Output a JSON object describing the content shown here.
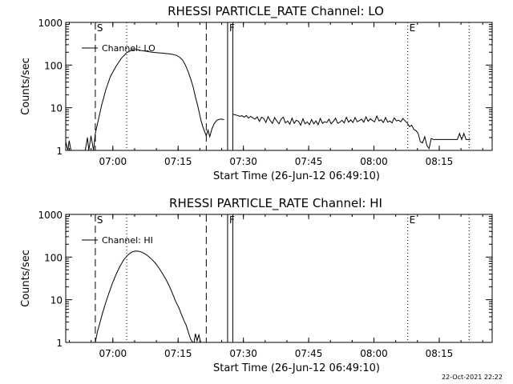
{
  "footer": {
    "timestamp": "22-Oct-2021 22:22"
  },
  "chart_data": [
    {
      "type": "line",
      "title": "RHESSI PARTICLE_RATE Channel: LO",
      "xlabel": "Start Time (26-Jun-12 06:49:10)",
      "ylabel": "Counts/sec",
      "yscale": "log",
      "ylim": [
        1,
        1000
      ],
      "xlim_min_after_start": [
        0,
        98
      ],
      "x_tick_minutes": [
        10.833,
        25.833,
        40.833,
        55.833,
        70.833,
        85.833
      ],
      "x_tick_labels": [
        "07:00",
        "07:15",
        "07:30",
        "07:45",
        "08:00",
        "08:15"
      ],
      "y_tick_values": [
        1,
        10,
        100,
        1000
      ],
      "y_tick_labels": [
        "1",
        "10",
        "100",
        "1000"
      ],
      "legend": "Channel: LO",
      "legend_position": "top-left",
      "event_markers": [
        {
          "label": "S",
          "minute": 6.8,
          "style": "dashed"
        },
        {
          "label": "",
          "minute": 14.0,
          "style": "dotted"
        },
        {
          "label": "",
          "minute": 32.3,
          "style": "dashed"
        },
        {
          "label": "F",
          "minute": 37.2,
          "style": "solid"
        },
        {
          "label": "",
          "minute": 38.4,
          "style": "solid"
        },
        {
          "label": "E",
          "minute": 78.6,
          "style": "dotted"
        },
        {
          "label": "",
          "minute": 92.7,
          "style": "dotted"
        }
      ],
      "series": [
        {
          "name": "Channel: LO",
          "segments": [
            {
              "x": [
                0,
                0.5,
                0.8,
                1.2,
                2.0,
                3.0,
                4.5,
                5.0,
                5.3,
                5.8,
                6.4,
                6.8,
                7.5,
                8.3,
                9.2,
                10.3,
                11.6,
                12.8,
                14.0,
                15.2,
                16.3,
                17.3,
                18.6,
                19.8,
                21.0,
                22.3,
                23.5,
                24.6,
                25.5,
                26.2,
                26.9,
                27.5,
                28.1,
                28.7,
                29.3,
                29.8,
                30.3,
                30.7,
                31.1,
                31.5,
                31.9,
                32.3,
                32.7,
                33.1,
                33.6,
                34.1,
                34.7,
                35.5,
                36.4
              ],
              "y": [
                1.6,
                1.0,
                1.7,
                1.0,
                1.0,
                1.0,
                1.0,
                2.0,
                1.0,
                2.2,
                1.0,
                2.5,
                5.2,
                12,
                26,
                55,
                95,
                145,
                195,
                225,
                232,
                220,
                210,
                200,
                195,
                190,
                185,
                178,
                168,
                152,
                130,
                100,
                72,
                48,
                30,
                18,
                11.5,
                7.5,
                5.0,
                3.6,
                2.8,
                2.2,
                3.0,
                2.1,
                3.2,
                4.2,
                5.1,
                5.4,
                5.3
              ]
            },
            {
              "x": [
                38.4,
                39.0,
                39.5,
                40.0,
                40.5,
                41.0,
                41.5,
                42.0,
                42.5,
                43.0,
                43.5,
                44.0,
                44.5,
                45.0,
                45.5,
                46.0,
                46.5,
                47.0,
                47.5,
                48.0,
                48.5,
                49.0,
                49.5,
                50.0,
                50.5,
                51.0,
                51.5,
                52.0,
                52.5,
                53.0,
                53.5,
                54.0,
                54.5,
                55.0,
                55.5,
                56.0,
                56.5,
                57.0,
                57.5,
                58.0,
                58.5,
                59.0,
                59.5,
                60.0,
                60.5,
                61.0,
                61.5,
                62.0,
                62.5,
                63.0,
                63.5,
                64.0,
                64.5,
                65.0,
                65.5,
                66.0,
                66.5,
                67.0,
                67.5,
                68.0,
                68.5,
                69.0,
                69.5,
                70.0,
                70.5,
                71.0,
                71.5,
                72.0,
                72.5,
                73.0,
                73.5,
                74.0,
                74.5,
                75.0,
                75.5,
                76.0,
                76.5,
                77.0,
                77.5,
                78.0,
                78.5,
                79.0,
                79.5,
                80.0,
                80.5,
                81.0,
                81.5,
                82.0,
                82.5,
                83.0,
                83.5,
                84.0,
                84.5,
                85.0,
                85.5,
                86.0,
                86.5,
                87.0,
                87.5,
                88.0,
                88.5,
                89.0,
                89.5,
                90.0,
                90.5,
                91.0,
                91.5,
                92.0,
                92.5,
                93.0
              ],
              "y": [
                7.1,
                6.8,
                6.6,
                6.3,
                6.5,
                6.0,
                6.6,
                5.7,
                6.3,
                5.8,
                5.4,
                6.1,
                4.8,
                6.0,
                5.6,
                4.5,
                6.2,
                5.0,
                4.3,
                5.9,
                4.9,
                4.2,
                5.4,
                6.0,
                4.4,
                4.9,
                4.1,
                5.7,
                4.3,
                5.1,
                4.8,
                3.9,
                5.5,
                4.2,
                4.7,
                4.0,
                5.3,
                4.2,
                4.9,
                4.0,
                5.6,
                4.3,
                4.7,
                4.5,
                5.4,
                4.2,
                4.8,
                5.7,
                4.3,
                4.6,
                5.1,
                4.4,
                6.0,
                4.6,
                5.2,
                4.5,
                5.9,
                4.7,
                5.0,
                5.4,
                4.6,
                6.1,
                4.8,
                5.5,
                5.0,
                4.7,
                6.4,
                4.9,
                5.2,
                4.5,
                5.9,
                4.6,
                4.9,
                4.4,
                5.8,
                4.9,
                5.1,
                4.7,
                5.6,
                4.9,
                4.4,
                3.6,
                3.9,
                3.1,
                2.9,
                2.5,
                1.6,
                1.5,
                2.1,
                1.3,
                1.1,
                1.9,
                1.8,
                1.8,
                1.8,
                1.8,
                1.8,
                1.8,
                1.8,
                1.8,
                1.8,
                1.8,
                1.8,
                1.8,
                2.5,
                1.8,
                2.5,
                1.8,
                1.8,
                1.8
              ]
            }
          ]
        }
      ]
    },
    {
      "type": "line",
      "title": "RHESSI PARTICLE_RATE Channel: HI",
      "xlabel": "Start Time (26-Jun-12 06:49:10)",
      "ylabel": "Counts/sec",
      "yscale": "log",
      "ylim": [
        1,
        1000
      ],
      "xlim_min_after_start": [
        0,
        98
      ],
      "x_tick_minutes": [
        10.833,
        25.833,
        40.833,
        55.833,
        70.833,
        85.833
      ],
      "x_tick_labels": [
        "07:00",
        "07:15",
        "07:30",
        "07:45",
        "08:00",
        "08:15"
      ],
      "y_tick_values": [
        1,
        10,
        100,
        1000
      ],
      "y_tick_labels": [
        "1",
        "10",
        "100",
        "1000"
      ],
      "legend": "Channel: HI",
      "legend_position": "top-left",
      "event_markers": [
        {
          "label": "S",
          "minute": 6.8,
          "style": "dashed"
        },
        {
          "label": "",
          "minute": 14.0,
          "style": "dotted"
        },
        {
          "label": "",
          "minute": 32.3,
          "style": "dashed"
        },
        {
          "label": "F",
          "minute": 37.2,
          "style": "solid"
        },
        {
          "label": "",
          "minute": 38.4,
          "style": "solid"
        },
        {
          "label": "E",
          "minute": 78.6,
          "style": "dotted"
        },
        {
          "label": "",
          "minute": 92.7,
          "style": "dotted"
        }
      ],
      "series": [
        {
          "name": "Channel: HI",
          "segments": [
            {
              "x": [
                6.8,
                7.3,
                7.9,
                8.5,
                9.2,
                9.9,
                10.7,
                11.6,
                12.5,
                13.4,
                14.3,
                15.1,
                15.9,
                16.7,
                17.5,
                18.3,
                19.1,
                19.9,
                20.7,
                21.5,
                22.3,
                23.1,
                23.9,
                24.6,
                25.3,
                26.0,
                26.6,
                27.2,
                27.7,
                28.2,
                28.7,
                29.2
              ],
              "y": [
                1.0,
                1.8,
                3.0,
                5.0,
                8.5,
                14,
                24,
                40,
                62,
                88,
                112,
                130,
                138,
                137,
                130,
                118,
                102,
                86,
                70,
                54,
                40,
                29,
                20,
                13.5,
                9.0,
                6.5,
                4.5,
                3.2,
                2.5,
                1.7,
                1.2,
                1.0
              ]
            },
            {
              "x": [
                29.5,
                29.8,
                30.2,
                30.6,
                31.0
              ],
              "y": [
                1.0,
                1.6,
                1.1,
                1.5,
                1.0
              ]
            }
          ]
        }
      ]
    }
  ]
}
